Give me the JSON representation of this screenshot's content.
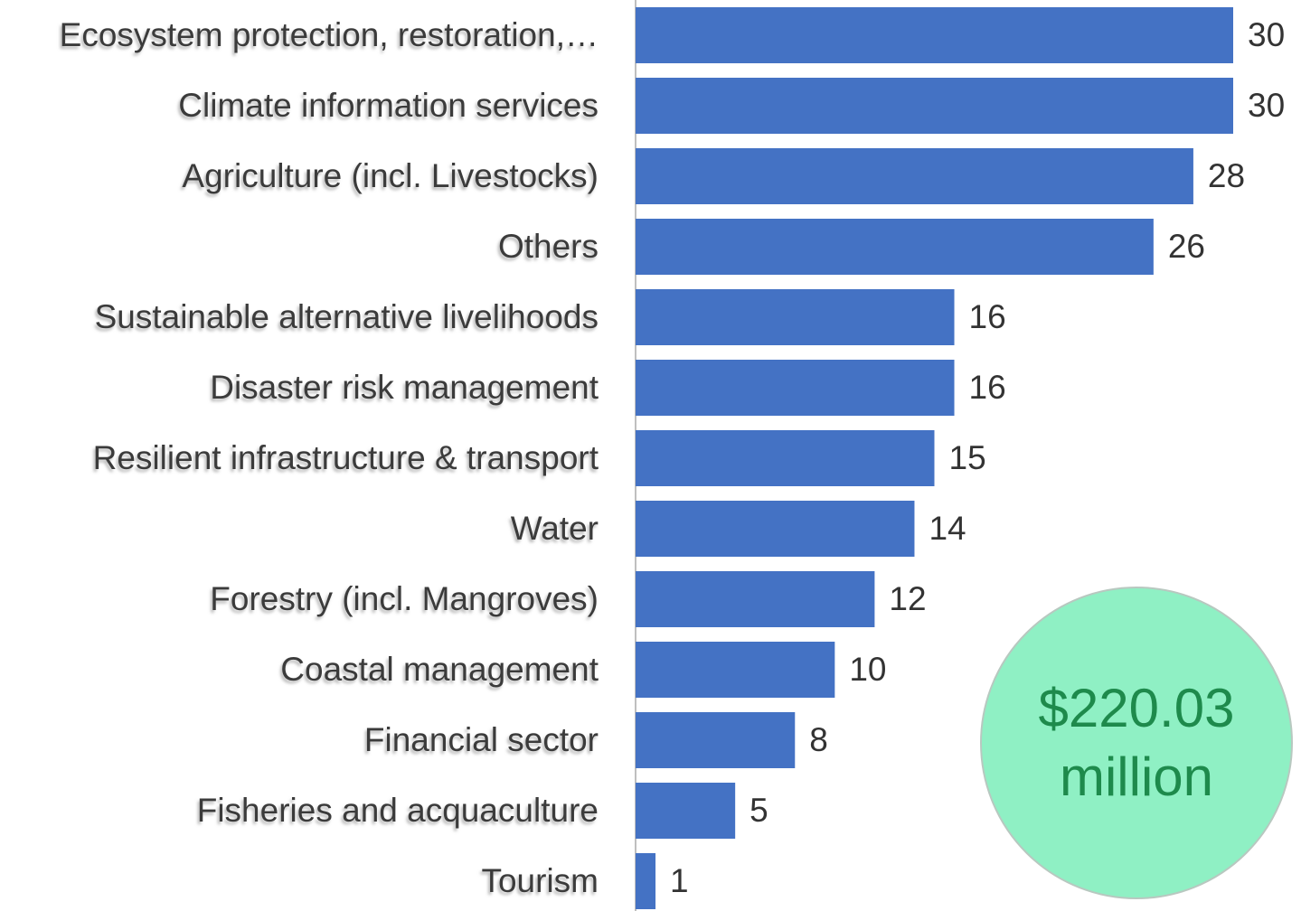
{
  "chart_data": {
    "type": "barh",
    "categories": [
      "Ecosystem protection, restoration,…",
      "Climate information services",
      "Agriculture (incl. Livestocks)",
      "Others",
      "Sustainable alternative livelihoods",
      "Disaster risk management",
      "Resilient infrastructure & transport",
      "Water",
      "Forestry (incl. Mangroves)",
      "Coastal management",
      "Financial sector",
      "Fisheries and acquaculture",
      "Tourism"
    ],
    "values": [
      30,
      30,
      28,
      26,
      16,
      16,
      15,
      14,
      12,
      10,
      8,
      5,
      1
    ],
    "color": "#4472c4",
    "xlim": [
      0,
      30
    ],
    "annotation": [
      "$220.03",
      "million"
    ]
  }
}
